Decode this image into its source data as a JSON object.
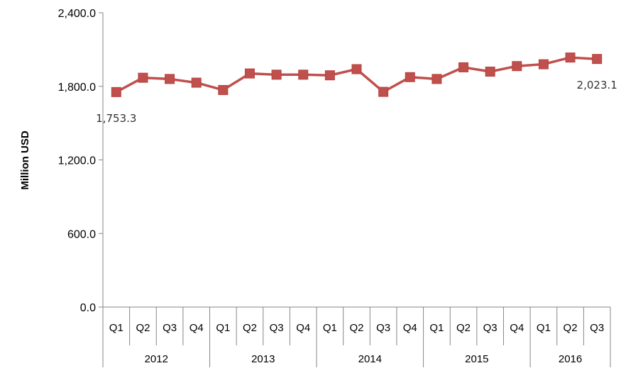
{
  "chart_data": {
    "type": "line",
    "ylabel": "Million USD",
    "ylim": [
      0,
      2400
    ],
    "y_ticks": [
      "0.0",
      "600.0",
      "1,200.0",
      "1,800.0",
      "2,400.0"
    ],
    "y_tick_values": [
      0,
      600,
      1200,
      1800,
      2400
    ],
    "categories": [
      "Q1",
      "Q2",
      "Q3",
      "Q4",
      "Q1",
      "Q2",
      "Q3",
      "Q4",
      "Q1",
      "Q2",
      "Q3",
      "Q4",
      "Q1",
      "Q2",
      "Q3",
      "Q4",
      "Q1",
      "Q2",
      "Q3"
    ],
    "years": [
      {
        "label": "2012",
        "quarters": 4
      },
      {
        "label": "2013",
        "quarters": 4
      },
      {
        "label": "2014",
        "quarters": 4
      },
      {
        "label": "2015",
        "quarters": 4
      },
      {
        "label": "2016",
        "quarters": 3
      }
    ],
    "series": [
      {
        "values": [
          1753.3,
          1870,
          1860,
          1830,
          1770,
          1905,
          1895,
          1895,
          1890,
          1940,
          1755,
          1875,
          1860,
          1955,
          1920,
          1965,
          1980,
          2035,
          2023.1
        ],
        "color": "#c0504d"
      }
    ],
    "data_labels": [
      {
        "index": 0,
        "text": "1,753.3",
        "position": "below"
      },
      {
        "index": 18,
        "text": "2,023.1",
        "position": "below"
      }
    ],
    "grid": false,
    "legend": "none"
  }
}
